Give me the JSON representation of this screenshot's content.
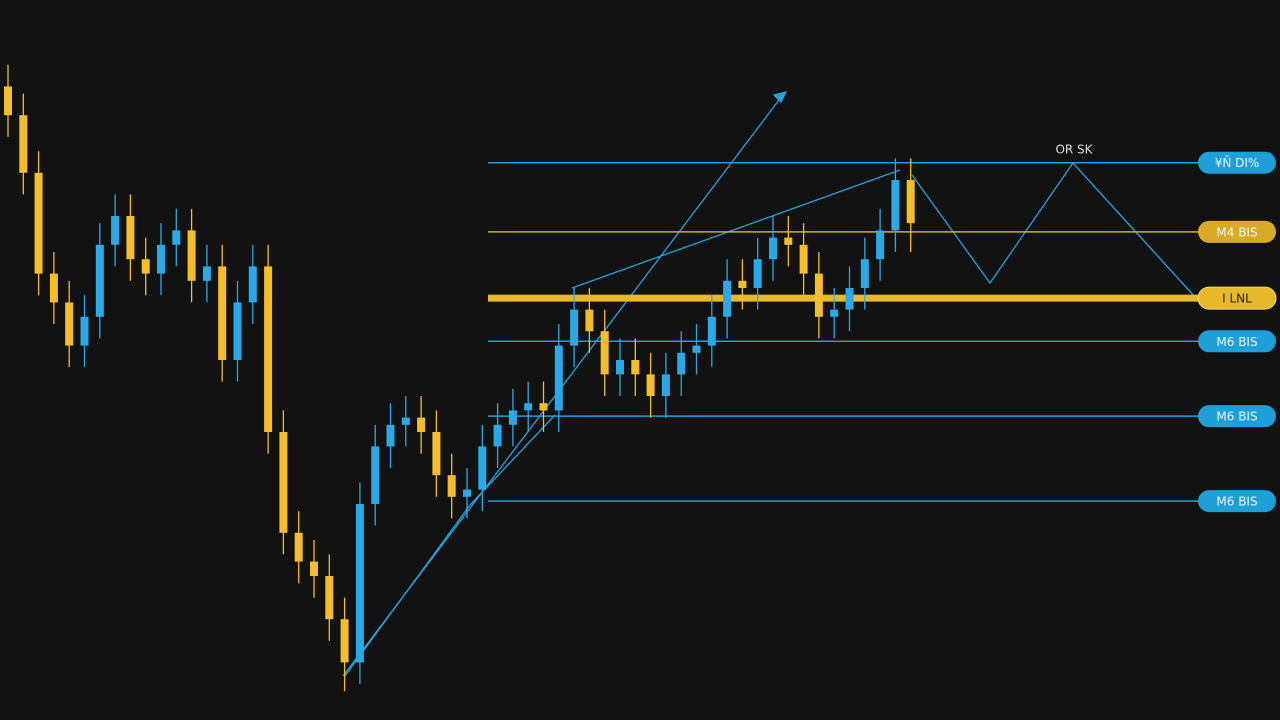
{
  "chart_data": {
    "type": "candlestick",
    "open": [
      88,
      84,
      76,
      62,
      58,
      52,
      56,
      66,
      70,
      64,
      62,
      66,
      68,
      61,
      63,
      50,
      58,
      63,
      40,
      26,
      22,
      20,
      14,
      8,
      30,
      38,
      41,
      42,
      40,
      34,
      31,
      32,
      38,
      41,
      43,
      44,
      43,
      52,
      57,
      54,
      48,
      50,
      48,
      45,
      48,
      51,
      52,
      56,
      61,
      60,
      64,
      67,
      66,
      62,
      56,
      57,
      60,
      64,
      68,
      75
    ],
    "high": [
      91,
      87,
      79,
      65,
      61,
      59,
      69,
      73,
      73,
      67,
      69,
      71,
      71,
      66,
      66,
      61,
      66,
      66,
      43,
      29,
      25,
      23,
      17,
      33,
      41,
      44,
      45,
      45,
      43,
      37,
      35,
      41,
      44,
      46,
      47,
      47,
      55,
      60,
      60,
      57,
      53,
      53,
      51,
      51,
      54,
      55,
      59,
      64,
      64,
      67,
      70,
      70,
      69,
      65,
      60,
      63,
      67,
      71,
      78,
      78
    ],
    "low": [
      81,
      73,
      59,
      55,
      49,
      49,
      53,
      63,
      61,
      59,
      59,
      63,
      58,
      58,
      47,
      47,
      55,
      37,
      23,
      19,
      17,
      11,
      4,
      5,
      27,
      35,
      38,
      37,
      31,
      28,
      28,
      29,
      35,
      38,
      40,
      40,
      40,
      49,
      51,
      45,
      45,
      45,
      42,
      42,
      45,
      48,
      49,
      53,
      57,
      57,
      61,
      63,
      59,
      53,
      53,
      54,
      57,
      61,
      65,
      65
    ],
    "close": [
      84,
      76,
      62,
      58,
      52,
      56,
      66,
      70,
      64,
      62,
      66,
      68,
      61,
      63,
      50,
      58,
      63,
      40,
      26,
      22,
      20,
      14,
      8,
      30,
      38,
      41,
      42,
      40,
      34,
      31,
      32,
      38,
      41,
      43,
      44,
      43,
      52,
      57,
      54,
      48,
      50,
      48,
      45,
      48,
      51,
      52,
      56,
      61,
      60,
      64,
      67,
      66,
      62,
      56,
      57,
      60,
      64,
      68,
      75,
      69
    ],
    "up_color": "#2ba9e6",
    "down_color": "#f4bd2a",
    "ylim": [
      0,
      100
    ],
    "levels": [
      {
        "label": "¥Ñ DI%",
        "value": 77.4,
        "color": "#1f9fd8"
      },
      {
        "label": "M4 BIS",
        "value": 67.8,
        "color": "#d9aa25"
      },
      {
        "label": "I LNL",
        "value": 58.6,
        "color": "#e6b82a"
      },
      {
        "label": "M6 BIS",
        "value": 52.6,
        "color": "#1f9fd8"
      },
      {
        "label": "M6 BIS",
        "value": 42.2,
        "color": "#1f9fd8"
      },
      {
        "label": "M6 BIS",
        "value": 30.4,
        "color": "#1f9fd8"
      }
    ],
    "annotation": "OR SK"
  }
}
